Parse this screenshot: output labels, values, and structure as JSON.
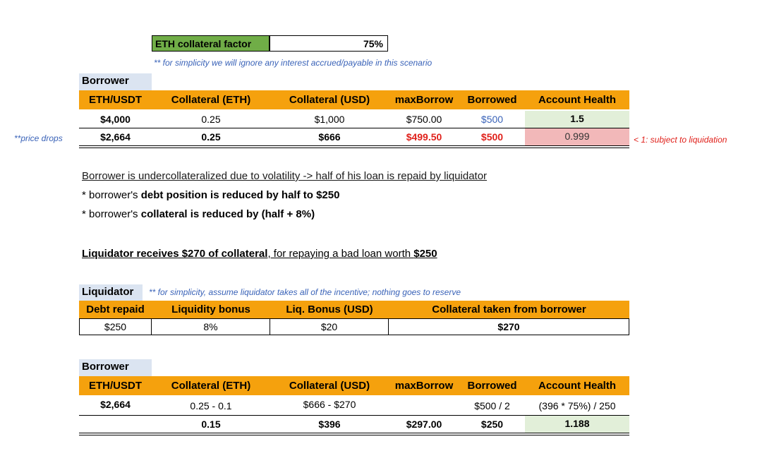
{
  "factor": {
    "label": "ETH collateral factor",
    "value": "75%"
  },
  "note1": "** for simplicity we will ignore any interest accrued/payable in this scenario",
  "table1": {
    "section_label": "Borrower",
    "headers": [
      "ETH/USDT",
      "Collateral (ETH)",
      "Collateral (USD)",
      "maxBorrow",
      "Borrowed",
      "Account Health"
    ],
    "row1": [
      "$4,000",
      "0.25",
      "$1,000",
      "$750.00",
      "$500",
      "1.5"
    ],
    "row2": [
      "$2,664",
      "0.25",
      "$666",
      "$499.50",
      "$500",
      "0.999"
    ],
    "left_note": "**price drops",
    "right_note": "< 1: subject to liquidation"
  },
  "explain": {
    "headline": "Borrower is undercollateralized due to volatility -> half of his loan is repaid by liquidator",
    "b1_prefix": "* borrower's ",
    "b1_bold": "debt position is reduced by half to $250",
    "b2_prefix": "* borrower's ",
    "b2_bold": "collateral is reduced by (half + 8%)",
    "liq_bold": "Liquidator receives $270 of collateral",
    "liq_mid": ", for repaying a bad loan worth ",
    "liq_amt": "$250"
  },
  "table2": {
    "section_label": "Liquidator",
    "note": "** for simplicity, assume liquidator takes all of the incentive; nothing goes to reserve",
    "headers": [
      "Debt repaid",
      "Liquidity bonus",
      "Liq. Bonus (USD)",
      "Collateral taken from borrower"
    ],
    "row": [
      "$250",
      "8%",
      "$20",
      "$270"
    ]
  },
  "table3": {
    "section_label": "Borrower",
    "headers": [
      "ETH/USDT",
      "Collateral (ETH)",
      "Collateral (USD)",
      "maxBorrow",
      "Borrowed",
      "Account Health"
    ],
    "row1": [
      "$2,664",
      "0.25 - 0.1",
      "$666 - $270",
      "",
      "$500 / 2",
      "(396 * 75%) / 250"
    ],
    "row2": [
      "",
      "0.15",
      "$396",
      "$297.00",
      "$250",
      "1.188"
    ]
  }
}
